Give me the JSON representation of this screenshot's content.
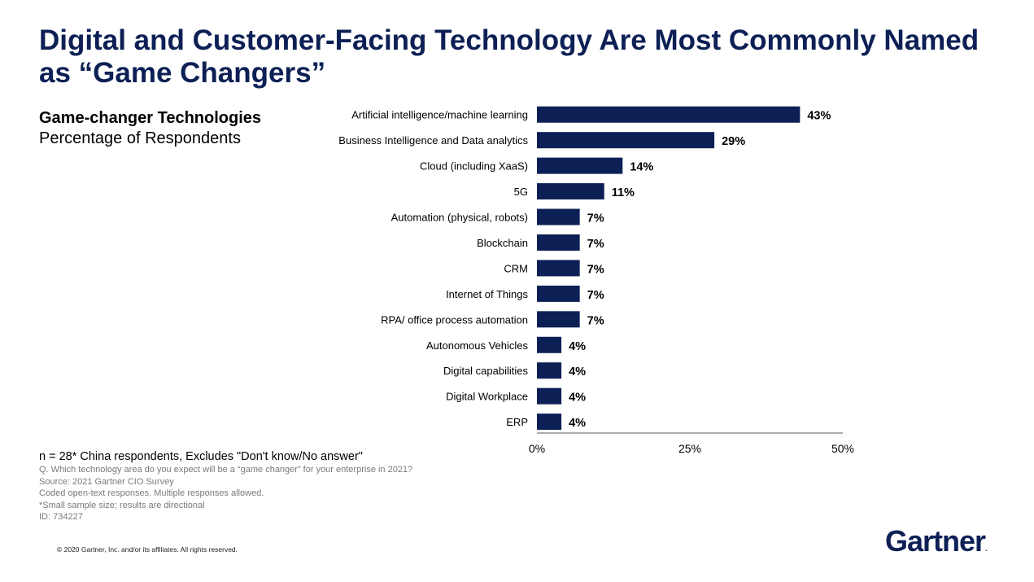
{
  "slide": {
    "title": "Digital and Customer-Facing Technology Are Most Commonly Named as “Game Changers”",
    "subtitle": "Game-changer Technologies",
    "subtitle_sub": "Percentage of Respondents"
  },
  "chart_data": {
    "type": "bar",
    "orientation": "horizontal",
    "title": "Game-changer Technologies",
    "ylabel": "Percentage of Respondents",
    "categories": [
      "Artificial intelligence/machine learning",
      "Business Intelligence and Data analytics",
      "Cloud (including XaaS)",
      "5G",
      "Automation (physical, robots)",
      "Blockchain",
      "CRM",
      "Internet of Things",
      "RPA/ office process automation",
      "Autonomous Vehicles",
      "Digital capabilities",
      "Digital Workplace",
      "ERP"
    ],
    "values": [
      43,
      29,
      14,
      11,
      7,
      7,
      7,
      7,
      7,
      4,
      4,
      4,
      4
    ],
    "data_labels": [
      "43%",
      "29%",
      "14%",
      "11%",
      "7%",
      "7%",
      "7%",
      "7%",
      "7%",
      "4%",
      "4%",
      "4%",
      "4%"
    ],
    "xlim": [
      0,
      50
    ],
    "xticks": [
      0,
      25,
      50
    ],
    "xtick_labels": [
      "0%",
      "25%",
      "50%"
    ],
    "bar_color": "#0d2055",
    "grid": false
  },
  "footnotes": {
    "main": "n = 28* China respondents, Excludes \"Don't know/No answer\"",
    "lines": [
      "Q. Which technology area do you expect will be a “game changer” for your enterprise in 2021?",
      "Source: 2021 Gartner CIO Survey",
      "Coded open-text responses. Multiple responses allowed.",
      "*Small sample size; results are directional",
      "ID: 734227"
    ]
  },
  "copyright": "© 2020 Gartner, Inc. and/or its affiliates. All rights reserved.",
  "logo": {
    "text": "Gartner",
    "mark": "."
  },
  "colors": {
    "brand_navy": "#0d2055",
    "footnote_gray": "#7a7a7a"
  }
}
